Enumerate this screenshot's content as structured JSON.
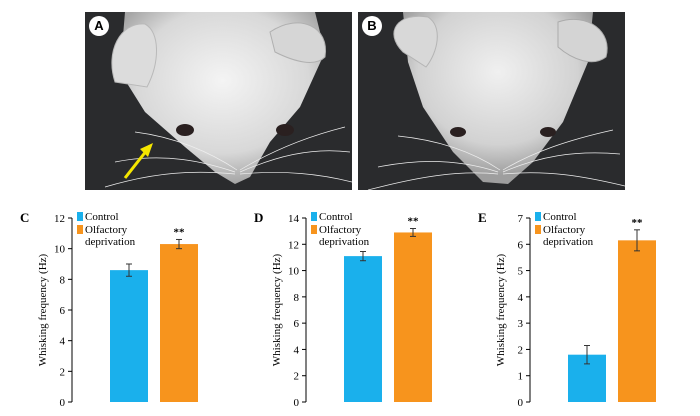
{
  "photos": [
    {
      "id": "A",
      "label": "A",
      "arrow": true
    },
    {
      "id": "B",
      "label": "B",
      "arrow": false
    }
  ],
  "colors": {
    "control": "#1ab0ec",
    "deprivation": "#f7941d",
    "arrow": "#f5e600",
    "photo_bg": "#2a2b2d"
  },
  "chart_data": [
    {
      "panel": "C",
      "type": "bar",
      "ylabel": "Whisking frequency (Hz)",
      "ylim": [
        0,
        12
      ],
      "yticks": [
        0,
        2,
        4,
        6,
        8,
        10,
        12
      ],
      "legend": [
        "Control",
        "Olfactory deprivation"
      ],
      "legend_lines": [
        "Control",
        "Olfactory",
        "deprivation"
      ],
      "series": [
        {
          "name": "Control",
          "value": 8.6,
          "error": 0.4
        },
        {
          "name": "Olfactory deprivation",
          "value": 10.3,
          "error": 0.3
        }
      ],
      "significance": "**"
    },
    {
      "panel": "D",
      "type": "bar",
      "ylabel": "Whisking frequency (Hz)",
      "ylim": [
        0,
        14
      ],
      "yticks": [
        0,
        2,
        4,
        6,
        8,
        10,
        12,
        14
      ],
      "legend": [
        "Control",
        "Olfactory deprivation"
      ],
      "legend_lines": [
        "Control",
        "Olfactory",
        "deprivation"
      ],
      "series": [
        {
          "name": "Control",
          "value": 11.1,
          "error": 0.35
        },
        {
          "name": "Olfactory deprivation",
          "value": 12.9,
          "error": 0.3
        }
      ],
      "significance": "**"
    },
    {
      "panel": "E",
      "type": "bar",
      "ylabel": "Whisking frequency (Hz)",
      "ylim": [
        0,
        7
      ],
      "yticks": [
        0,
        1,
        2,
        3,
        4,
        5,
        6,
        7
      ],
      "legend": [
        "Control",
        "Olfactory deprivation"
      ],
      "legend_lines": [
        "Control",
        "Olfactory",
        "deprivation"
      ],
      "series": [
        {
          "name": "Control",
          "value": 1.8,
          "error": 0.35
        },
        {
          "name": "Olfactory deprivation",
          "value": 6.15,
          "error": 0.4
        }
      ],
      "significance": "**"
    }
  ]
}
